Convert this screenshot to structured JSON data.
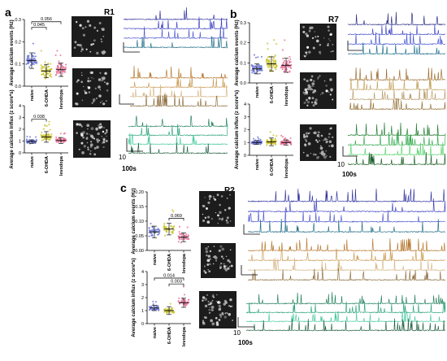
{
  "panel_letters": [
    "a",
    "b",
    "c"
  ],
  "colors": {
    "naive": "#6f79d6",
    "ohda": "#c9c631",
    "levodopa": "#e9749a",
    "mean_bar": "#111111",
    "image_bg": "#1c1c1c",
    "trace_groups": [
      [
        "#2d2f9e",
        "#3a3fc0",
        "#4b55ce",
        "#1f6b84"
      ],
      [
        "#b6752b",
        "#c99a52",
        "#d5b686",
        "#8a6a3a"
      ],
      [
        "#1f7d5a",
        "#2aa37a",
        "#46c9a0",
        "#1e5e3e"
      ]
    ],
    "trace_groups_b": [
      [
        "#24287f",
        "#3f46c8",
        "#3f4fd3",
        "#1d6c8a"
      ],
      [
        "#9a6a2c",
        "#c4a15e",
        "#b79a68",
        "#8c6a2b"
      ],
      [
        "#1e7a2c",
        "#2fa84a",
        "#55d36a",
        "#145a21"
      ]
    ]
  },
  "chart_data": [
    {
      "id": "a-events",
      "panel": "a",
      "type": "scatter",
      "ylabel": "Average calcium events (Hz)",
      "categories": [
        "naive",
        "6-OHDA",
        "levodopa"
      ],
      "ylim": [
        0.0,
        0.3
      ],
      "yticks": [
        "0.0",
        "0.1",
        "0.2",
        "0.3"
      ],
      "means": [
        0.115,
        0.068,
        0.074
      ],
      "sd": [
        0.035,
        0.03,
        0.03
      ],
      "spread": [
        0.05,
        0.045,
        0.045
      ],
      "npoints": 55,
      "annotations": [
        {
          "text": "0.056",
          "from": 0,
          "to": 2,
          "at": 0.29
        },
        {
          "text": "0.045",
          "from": 0,
          "to": 1,
          "at": 0.265
        }
      ]
    },
    {
      "id": "a-influx",
      "panel": "a",
      "type": "scatter",
      "ylabel": "Average calcium influx (z score*s)",
      "categories": [
        "naive",
        "6-OHDA",
        "levodopa"
      ],
      "ylim": [
        0,
        4
      ],
      "yticks": [
        "0",
        "1",
        "2",
        "3",
        "4"
      ],
      "means": [
        0.95,
        1.35,
        1.05
      ],
      "sd": [
        0.15,
        0.45,
        0.25
      ],
      "spread": [
        0.22,
        0.55,
        0.3
      ],
      "npoints": 55,
      "annotations": [
        {
          "text": "0.038",
          "from": 0,
          "to": 1,
          "at": 2.85
        }
      ]
    },
    {
      "id": "b-events",
      "panel": "b",
      "type": "scatter",
      "ylabel": "Average calcium events (Hz)",
      "categories": [
        "naive",
        "6-OHDA",
        "levodopa"
      ],
      "ylim": [
        0.0,
        0.3
      ],
      "yticks": [
        "0.0",
        "0.1",
        "0.2",
        "0.3"
      ],
      "means": [
        0.07,
        0.095,
        0.088
      ],
      "sd": [
        0.025,
        0.035,
        0.035
      ],
      "spread": [
        0.04,
        0.06,
        0.055
      ],
      "npoints": 60,
      "annotations": []
    },
    {
      "id": "b-influx",
      "panel": "b",
      "type": "scatter",
      "ylabel": "Average calcium influx (z score*s)",
      "categories": [
        "naive",
        "6-OHDA",
        "levodopa"
      ],
      "ylim": [
        0,
        4
      ],
      "yticks": [
        "0",
        "1",
        "2",
        "3",
        "4"
      ],
      "means": [
        1.0,
        1.05,
        1.0
      ],
      "sd": [
        0.15,
        0.3,
        0.2
      ],
      "spread": [
        0.2,
        0.4,
        0.3
      ],
      "npoints": 60,
      "annotations": []
    },
    {
      "id": "c-events",
      "panel": "c",
      "type": "scatter",
      "ylabel": "Average calcium events (Hz)",
      "categories": [
        "naive",
        "6-OHDA",
        "levodopa"
      ],
      "ylim": [
        0.0,
        0.2
      ],
      "yticks": [
        "0.00",
        "0.05",
        "0.10",
        "0.15",
        "0.20"
      ],
      "means": [
        0.063,
        0.073,
        0.045
      ],
      "sd": [
        0.02,
        0.02,
        0.015
      ],
      "spread": [
        0.03,
        0.03,
        0.025
      ],
      "npoints": 40,
      "annotations": [
        {
          "text": "0.069",
          "from": 1,
          "to": 2,
          "at": 0.11
        }
      ]
    },
    {
      "id": "c-influx",
      "panel": "c",
      "type": "scatter",
      "ylabel": "Average calcium influx (z score*s)",
      "categories": [
        "naive",
        "6-OHDA",
        "levodopa"
      ],
      "ylim": [
        0,
        4
      ],
      "yticks": [
        "0",
        "1",
        "2",
        "3",
        "4"
      ],
      "means": [
        1.2,
        1.0,
        1.6
      ],
      "sd": [
        0.2,
        0.3,
        0.35
      ],
      "spread": [
        0.25,
        0.4,
        0.6
      ],
      "npoints": 40,
      "annotations": [
        {
          "text": "0.014",
          "from": 0,
          "to": 2,
          "at": 3.5
        },
        {
          "text": "0.003",
          "from": 1,
          "to": 2,
          "at": 3.05
        }
      ]
    }
  ],
  "recordings": [
    {
      "id": "a",
      "label": "R1"
    },
    {
      "id": "b",
      "label": "R7"
    },
    {
      "id": "c",
      "label": "R2"
    }
  ],
  "scale": {
    "amplitude": "10",
    "time": "100s"
  }
}
